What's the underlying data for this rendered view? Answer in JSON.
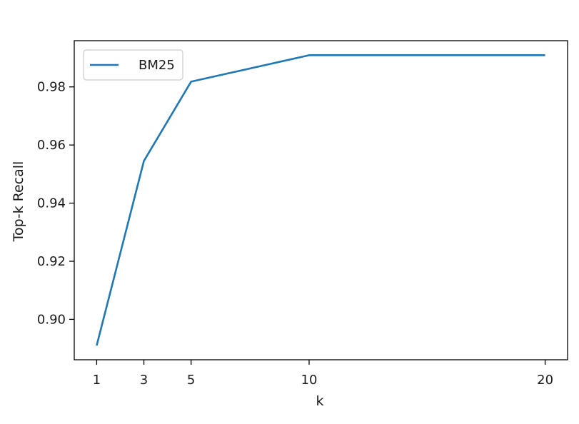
{
  "chart_data": {
    "type": "line",
    "title": "",
    "xlabel": "k",
    "ylabel": "Top-k Recall",
    "x": [
      1,
      3,
      5,
      10,
      20
    ],
    "series": [
      {
        "name": "BM25",
        "values": [
          0.891,
          0.9545,
          0.9818,
          0.9909,
          0.9909
        ],
        "color": "#1f77b4"
      }
    ],
    "xticks": [
      1,
      3,
      5,
      10,
      20
    ],
    "xtick_labels": [
      "1",
      "3",
      "5",
      "10",
      "20"
    ],
    "yticks": [
      0.9,
      0.92,
      0.94,
      0.96,
      0.98
    ],
    "ytick_labels": [
      "0.90",
      "0.92",
      "0.94",
      "0.96",
      "0.98"
    ],
    "xlim": [
      0.05,
      20.95
    ],
    "ylim": [
      0.8861,
      0.9959
    ],
    "grid": false,
    "legend": {
      "position": "upper left",
      "entries": [
        "BM25"
      ]
    }
  }
}
